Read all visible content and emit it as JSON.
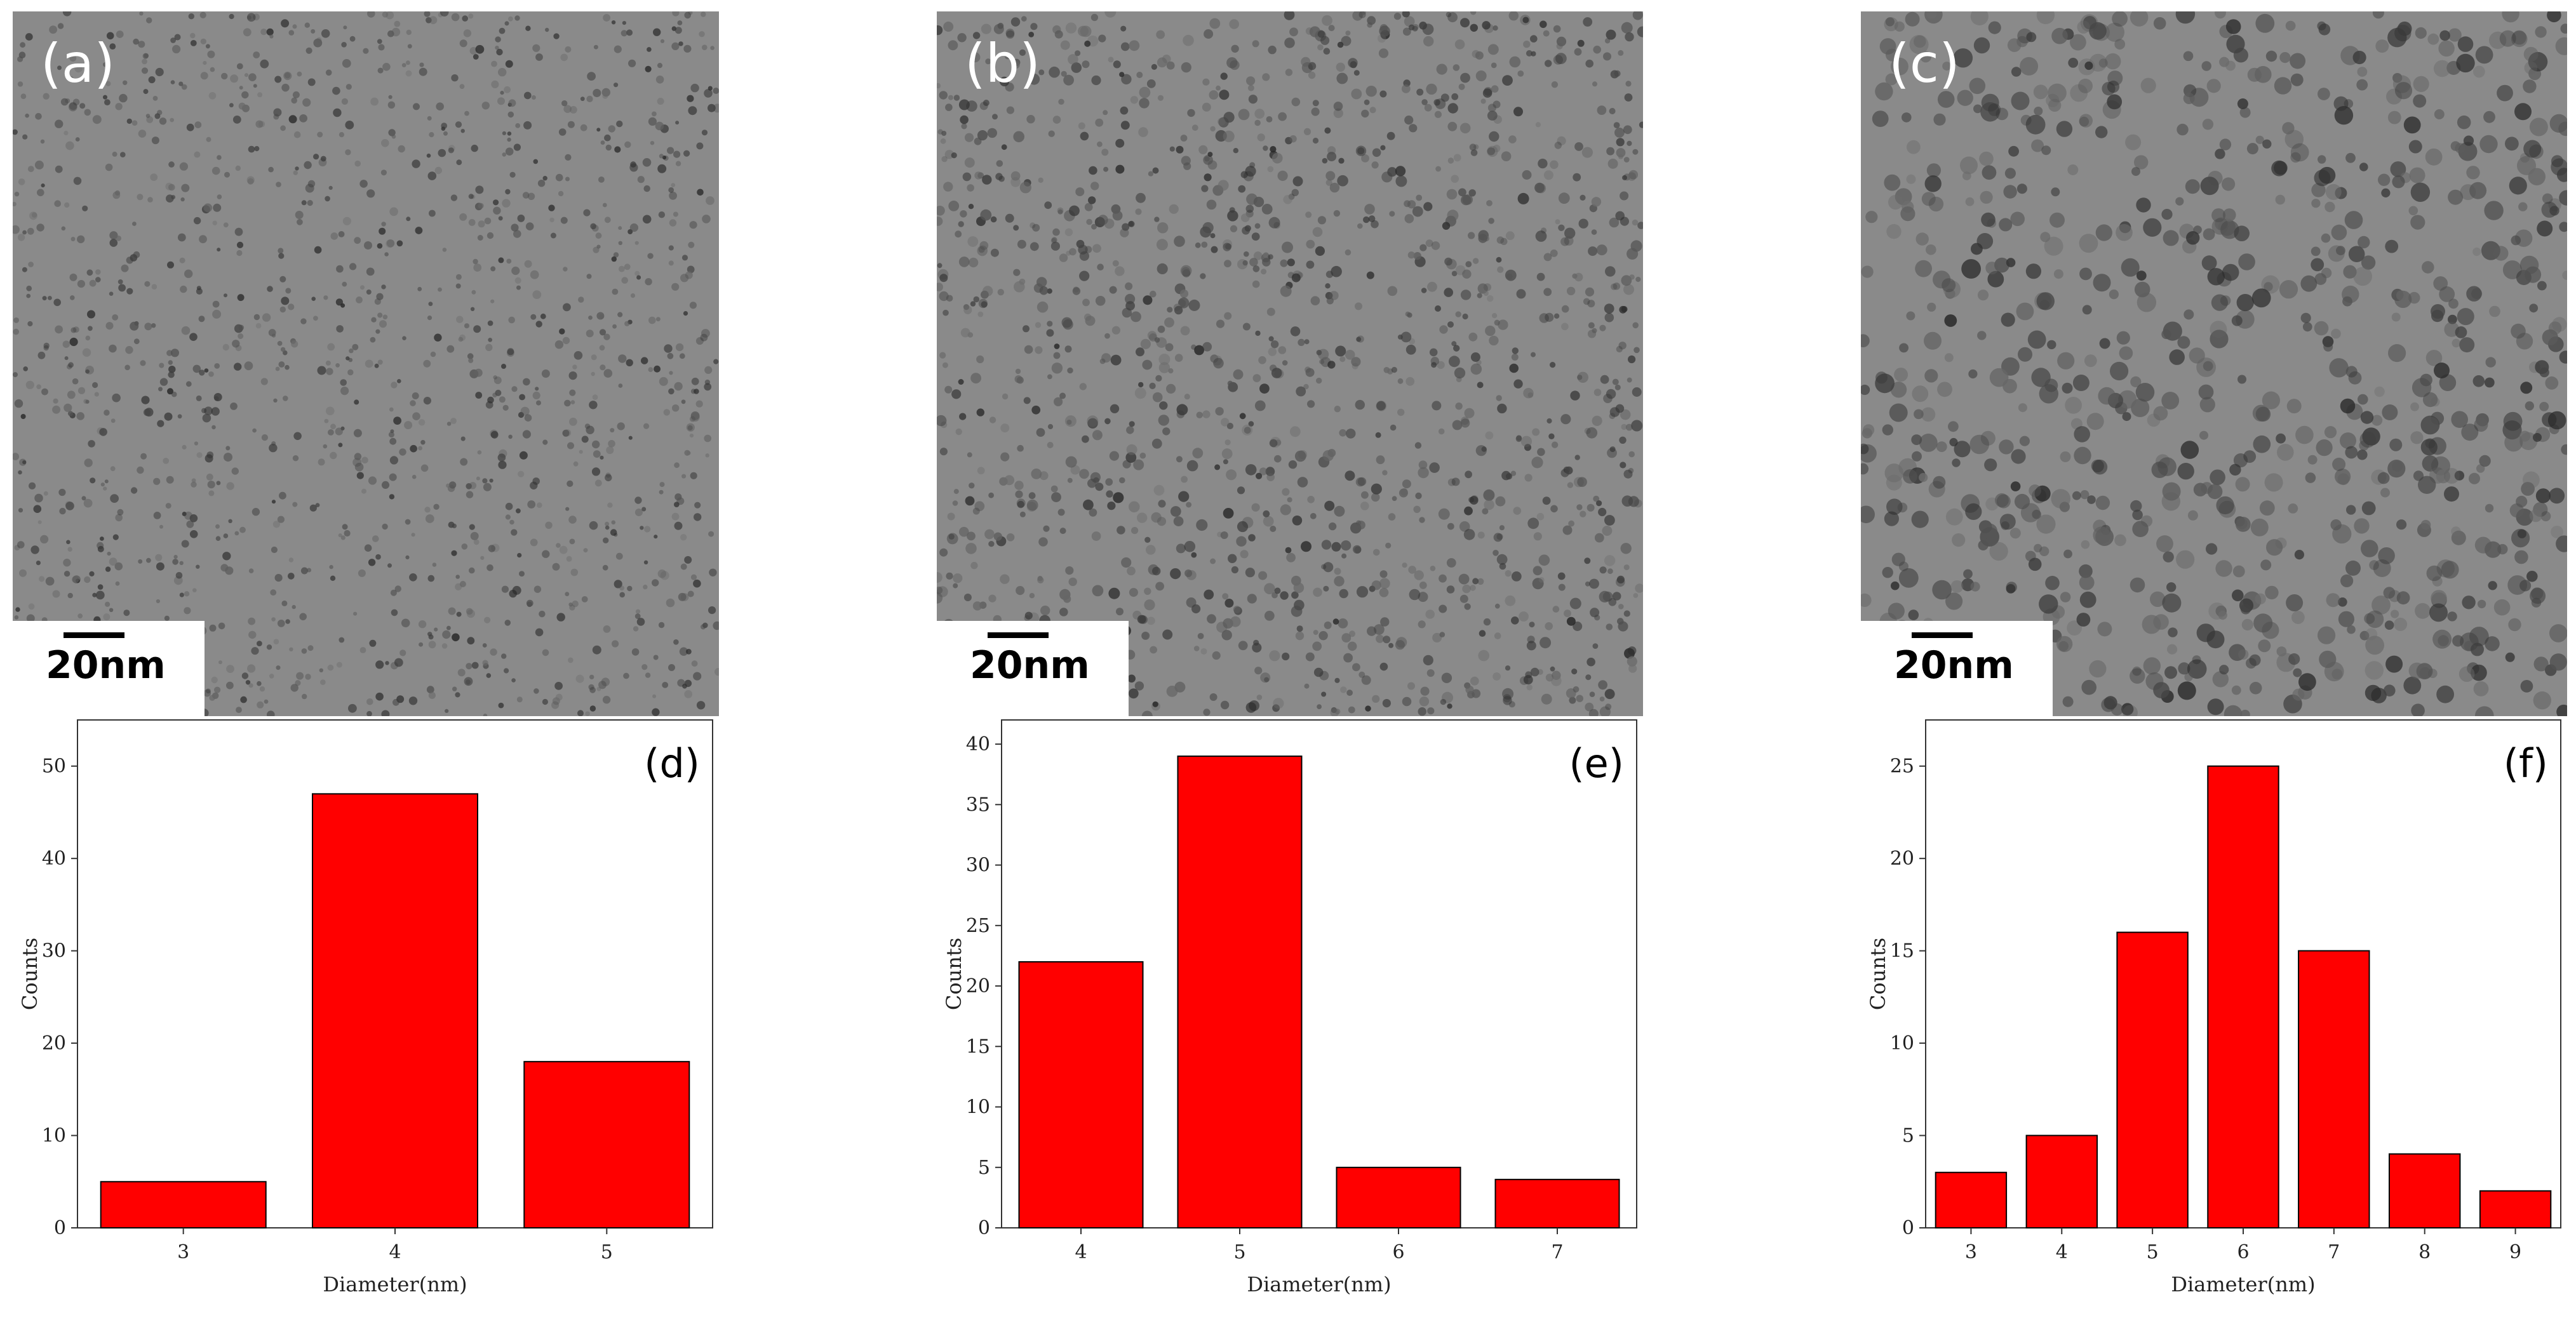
{
  "colors": {
    "bar_fill": "#ff0000",
    "bar_stroke": "#000000",
    "tem_base": "#8a8a8a"
  },
  "tem_panels": [
    {
      "label": "(a)",
      "scale_label": "20nm"
    },
    {
      "label": "(b)",
      "scale_label": "20nm"
    },
    {
      "label": "(c)",
      "scale_label": "20nm"
    }
  ],
  "chart_data": [
    {
      "type": "bar",
      "panel_label": "(d)",
      "categories": [
        "3",
        "4",
        "5"
      ],
      "values": [
        5,
        47,
        18
      ],
      "xlabel": "Diameter(nm)",
      "ylabel": "Counts",
      "ylim": [
        0,
        55
      ],
      "yticks": [
        "0",
        "10",
        "20",
        "30",
        "40",
        "50"
      ]
    },
    {
      "type": "bar",
      "panel_label": "(e)",
      "categories": [
        "4",
        "5",
        "6",
        "7"
      ],
      "values": [
        22,
        39,
        5,
        4
      ],
      "xlabel": "Diameter(nm)",
      "ylabel": "Counts",
      "ylim": [
        0,
        42
      ],
      "yticks": [
        "0",
        "5",
        "10",
        "15",
        "20",
        "25",
        "30",
        "35",
        "40"
      ]
    },
    {
      "type": "bar",
      "panel_label": "(f)",
      "categories": [
        "3",
        "4",
        "5",
        "6",
        "7",
        "8",
        "9"
      ],
      "values": [
        3,
        5,
        16,
        25,
        15,
        4,
        2
      ],
      "xlabel": "Diameter(nm)",
      "ylabel": "Counts",
      "ylim": [
        0,
        27.5
      ],
      "yticks": [
        "0",
        "5",
        "10",
        "15",
        "20",
        "25"
      ]
    }
  ]
}
